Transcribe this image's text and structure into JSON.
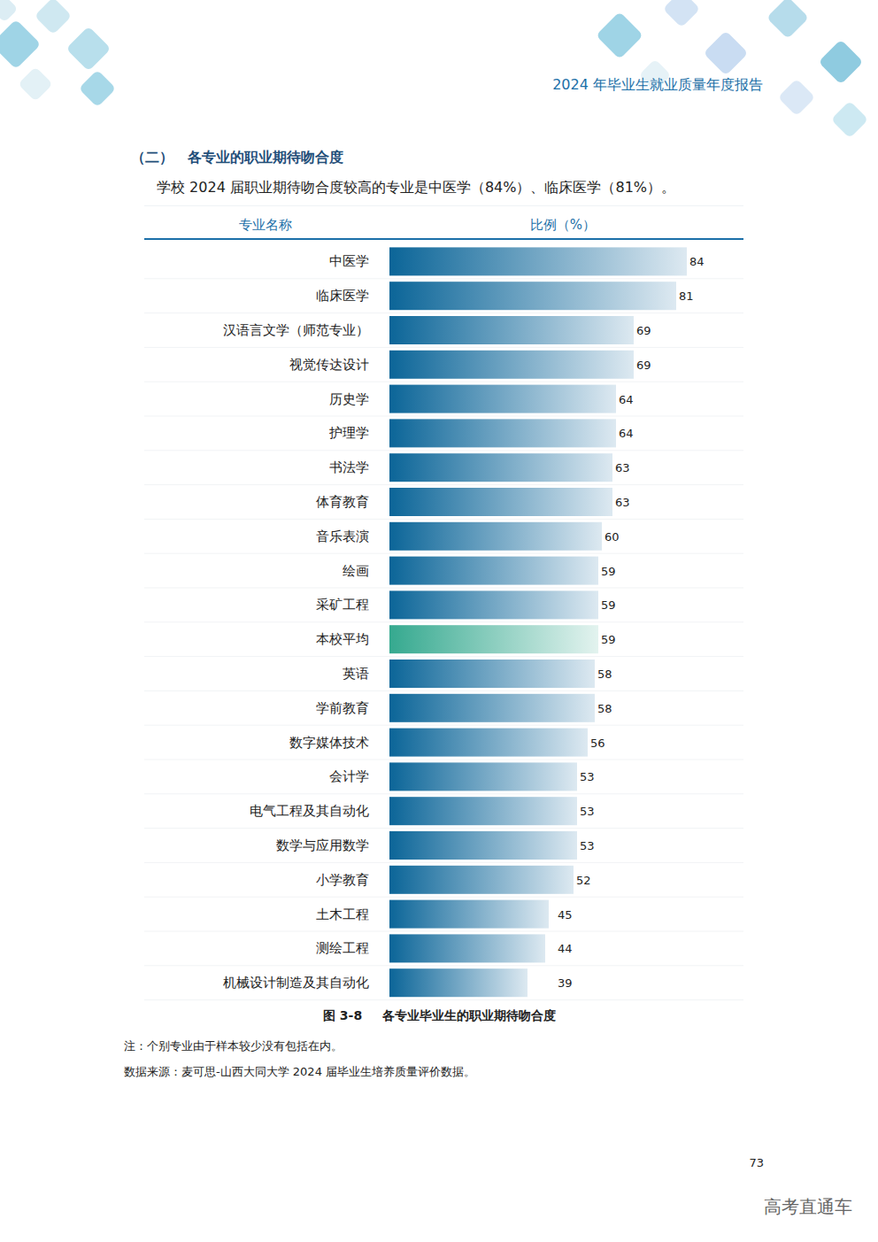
{
  "page": {
    "header": "2024 年毕业生就业质量年度报告",
    "section_number": "（二）",
    "section_title": "各专业的职业期待吻合度",
    "intro": "学校 2024 届职业期待吻合度较高的专业是中医学（84%）、临床医学（81%）。",
    "figure_label": "图 3-8",
    "notes": [
      "注：个别专业由于样本较少没有包括在内。",
      "数据来源：麦可思-山西大同大学 2024 届毕业生培养质量评价数据。"
    ],
    "page_number": "73",
    "watermark": "高考直通车"
  },
  "chart_data": {
    "type": "bar",
    "orientation": "horizontal",
    "title": "各专业毕业生的职业期待吻合度",
    "y_label": "专业名称",
    "x_label": "比例（%）",
    "categories": [
      "中医学",
      "临床医学",
      "汉语言文学（师范专业）",
      "视觉传达设计",
      "历史学",
      "护理学",
      "书法学",
      "体育教育",
      "音乐表演",
      "绘画",
      "采矿工程",
      "本校平均",
      "英语",
      "学前教育",
      "数字媒体技术",
      "会计学",
      "电气工程及其自动化",
      "数学与应用数学",
      "小学教育",
      "土木工程",
      "测绘工程",
      "机械设计制造及其自动化"
    ],
    "values": [
      84,
      81,
      69,
      69,
      64,
      64,
      63,
      63,
      60,
      59,
      59,
      59,
      58,
      58,
      56,
      53,
      53,
      53,
      52,
      45,
      44,
      39
    ],
    "colors": [
      "#0b6598",
      "#0b6598",
      "#0b6598",
      "#0b6598",
      "#0b6598",
      "#0b6598",
      "#0b6598",
      "#0b6598",
      "#0b6598",
      "#0b6598",
      "#0b6598",
      "#35a98f",
      "#0b6598",
      "#0b6598",
      "#0b6598",
      "#0b6598",
      "#0b6598",
      "#0b6598",
      "#0b6598",
      "#0b6598",
      "#0b6598",
      "#0b6598"
    ],
    "xlim": [
      0,
      100
    ],
    "tick_labels": false,
    "grid": false,
    "data_labels": true
  }
}
